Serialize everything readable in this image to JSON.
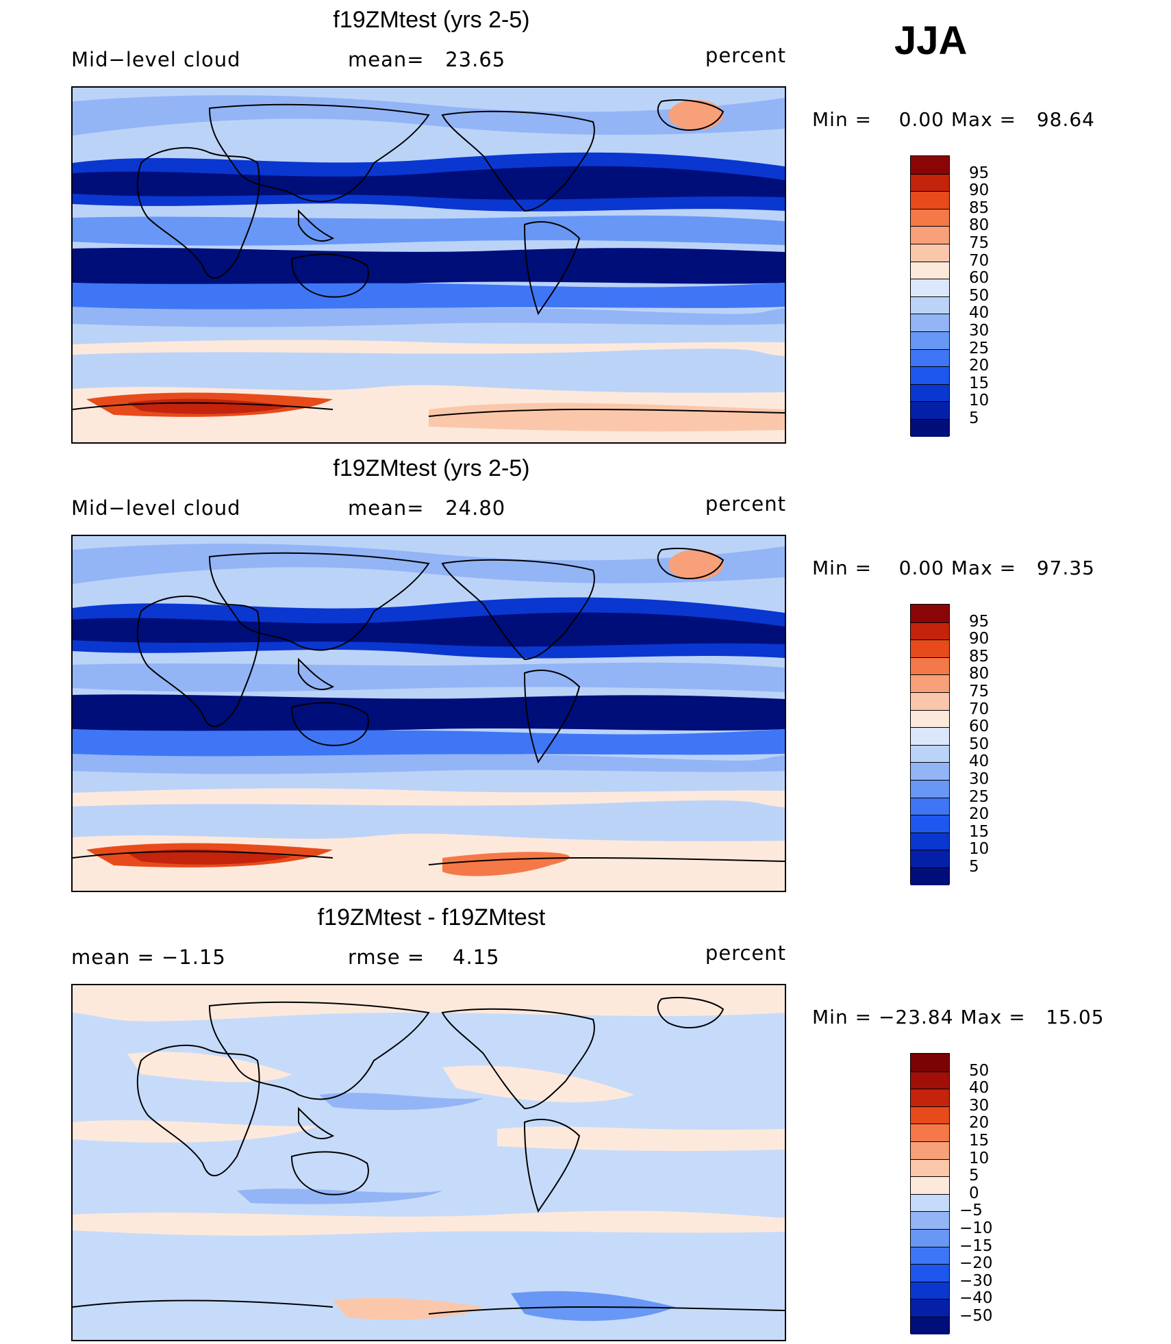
{
  "season": "JJA",
  "chart_data": [
    {
      "type": "heatmap",
      "title": "f19ZMtest (yrs 2-5)",
      "left_label": "Mid−level cloud",
      "center_label": "mean=   23.65",
      "units": "percent",
      "minmax_text": "Min =    0.00 Max =   98.64",
      "min": 0.0,
      "max": 98.64,
      "mean": 23.65,
      "levels": [
        "5",
        "10",
        "15",
        "20",
        "25",
        "30",
        "40",
        "50",
        "60",
        "70",
        "75",
        "80",
        "85",
        "90",
        "95"
      ],
      "colors": [
        "#000e7a",
        "#0420a8",
        "#0a37cf",
        "#1d57ee",
        "#3f76f5",
        "#6897f5",
        "#93b5f6",
        "#bcd3f8",
        "#dbe8fc",
        "#fde9dc",
        "#fbc7ab",
        "#f7a07a",
        "#f57848",
        "#e74b1c",
        "#c4230c",
        "#8a0606"
      ]
    },
    {
      "type": "heatmap",
      "title": "f19ZMtest (yrs 2-5)",
      "left_label": "Mid−level cloud",
      "center_label": "mean=   24.80",
      "units": "percent",
      "minmax_text": "Min =    0.00 Max =   97.35",
      "min": 0.0,
      "max": 97.35,
      "mean": 24.8,
      "levels": [
        "5",
        "10",
        "15",
        "20",
        "25",
        "30",
        "40",
        "50",
        "60",
        "70",
        "75",
        "80",
        "85",
        "90",
        "95"
      ],
      "colors": [
        "#000e7a",
        "#0420a8",
        "#0a37cf",
        "#1d57ee",
        "#3f76f5",
        "#6897f5",
        "#93b5f6",
        "#bcd3f8",
        "#dbe8fc",
        "#fde9dc",
        "#fbc7ab",
        "#f7a07a",
        "#f57848",
        "#e74b1c",
        "#c4230c",
        "#8a0606"
      ]
    },
    {
      "type": "heatmap",
      "title": "f19ZMtest - f19ZMtest",
      "left_label": "mean =   −1.15",
      "center_label": "rmse =    4.15",
      "units": "percent",
      "minmax_text": "Min = −23.84 Max =   15.05",
      "min": -23.84,
      "max": 15.05,
      "mean": -1.15,
      "rmse": 4.15,
      "levels": [
        "−50",
        "−40",
        "−30",
        "−20",
        "−15",
        "−10",
        "−5",
        "0",
        "5",
        "10",
        "15",
        "20",
        "30",
        "40",
        "50"
      ],
      "colors": [
        "#000e7a",
        "#0420a8",
        "#0a37cf",
        "#1d57ee",
        "#3f76f5",
        "#6897f5",
        "#93b5f6",
        "#c6dbfa",
        "#fde9dc",
        "#fbc7ab",
        "#f7a07a",
        "#f57848",
        "#e74b1c",
        "#c4230c",
        "#a01008",
        "#7a0404"
      ]
    }
  ]
}
